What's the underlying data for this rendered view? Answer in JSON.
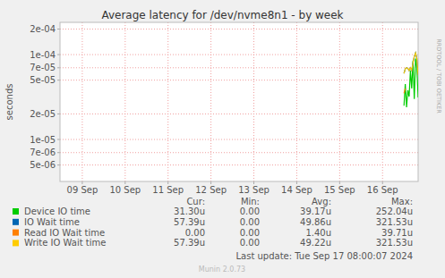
{
  "chart_data": {
    "type": "line",
    "title": "Average latency for /dev/nvme8n1 - by week",
    "y_label": "seconds",
    "side_text": "RRDTOOL / TOBI OETIKER",
    "footer": "Last update: Tue Sep 17 08:00:07 2024",
    "credit": "Munin 2.0.73",
    "log": "y",
    "grid": true,
    "legend": "bottom-left",
    "legend_columns": [
      "Cur:",
      "Min:",
      "Avg:",
      "Max:"
    ],
    "x": [
      17.0,
      17.03,
      17.06,
      17.09,
      17.12,
      17.15,
      17.18,
      17.21,
      17.24,
      17.27,
      17.3,
      17.33
    ],
    "xlim": [
      8.98,
      17.33
    ],
    "xticks": [
      {
        "value": 9.5,
        "label": "09 Sep"
      },
      {
        "value": 10.5,
        "label": "10 Sep"
      },
      {
        "value": 11.5,
        "label": "11 Sep"
      },
      {
        "value": 12.5,
        "label": "12 Sep"
      },
      {
        "value": 13.5,
        "label": "13 Sep"
      },
      {
        "value": 14.5,
        "label": "14 Sep"
      },
      {
        "value": 15.5,
        "label": "15 Sep"
      },
      {
        "value": 16.5,
        "label": "16 Sep"
      }
    ],
    "ylim": [
      3.2e-06,
      0.00024
    ],
    "yticks": [
      {
        "value": 5e-06,
        "label": "5e-06"
      },
      {
        "value": 7e-06,
        "label": "7e-06"
      },
      {
        "value": 1e-05,
        "label": "1e-05"
      },
      {
        "value": 2e-05,
        "label": "2e-05"
      },
      {
        "value": 5e-05,
        "label": "5e-05"
      },
      {
        "value": 7e-05,
        "label": "7e-05"
      },
      {
        "value": 0.0001,
        "label": "1e-04"
      },
      {
        "value": 0.0002,
        "label": "2e-04"
      }
    ],
    "series": [
      {
        "name": "Device IO time",
        "color": "#00CC00",
        "values": [
          2.5e-05,
          4.5e-05,
          2.4e-05,
          3.8e-05,
          3.2e-05,
          6.5e-05,
          4e-05,
          8.5e-05,
          3e-05,
          9e-05,
          7e-05,
          3.13e-05
        ],
        "stats": [
          "31.30u",
          "0.00",
          "39.17u",
          "252.04u"
        ]
      },
      {
        "name": "IO Wait time",
        "color": "#0066B3",
        "values": [
          6e-05,
          6.8e-05,
          7e-05,
          6.9e-05,
          6.5e-05,
          7e-05,
          6.5e-05,
          8e-05,
          9.5e-05,
          0.000105,
          9e-05,
          5.739e-05
        ],
        "stats": [
          "57.39u",
          "0.00",
          "49.86u",
          "321.53u"
        ]
      },
      {
        "name": "Read IO Wait time",
        "color": "#FF8000",
        "values": [
          3.5e-05,
          3.97e-05,
          null,
          null,
          null,
          null,
          null,
          null,
          null,
          null,
          null,
          null
        ],
        "stats": [
          "0.00",
          "0.00",
          "1.40u",
          "39.71u"
        ]
      },
      {
        "name": "Write IO Wait time",
        "color": "#FFCC00",
        "values": [
          6e-05,
          6.8e-05,
          7e-05,
          6.9e-05,
          6.5e-05,
          7e-05,
          6.5e-05,
          8e-05,
          9.5e-05,
          0.000105,
          9e-05,
          5.739e-05
        ],
        "stats": [
          "57.39u",
          "0.00",
          "49.22u",
          "321.53u"
        ]
      }
    ]
  }
}
